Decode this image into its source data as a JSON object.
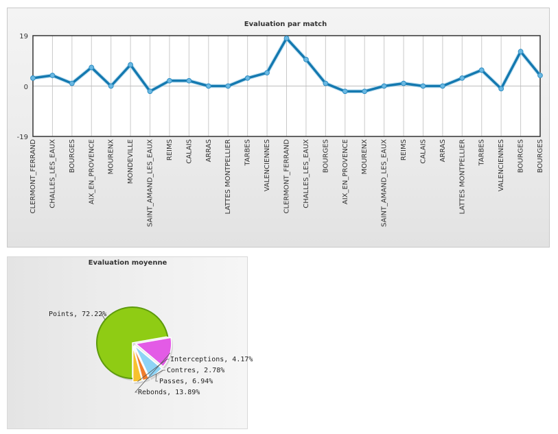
{
  "chart_data": [
    {
      "type": "line",
      "title": "Evaluation par match",
      "ylim": [
        -19,
        19
      ],
      "y_ticks": [
        "19",
        "0",
        "-19"
      ],
      "categories": [
        "CLERMONT_FERRAND",
        "CHALLES_LES_EAUX",
        "BOURGES",
        "AIX_EN_PROVENCE",
        "MOURENX",
        "MONDEVILLE",
        "SAINT_AMAND_LES_EAUX",
        "REIMS",
        "CALAIS",
        "ARRAS",
        "LATTES MONTPELLIER",
        "TARBES",
        "VALENCIENNES",
        "CLERMONT_FERRAND",
        "CHALLES_LES_EAUX",
        "BOURGES",
        "AIX_EN_PROVENCE",
        "MOURENX",
        "SAINT_AMAND_LES_EAUX",
        "REIMS",
        "CALAIS",
        "ARRAS",
        "LATTES MONTPELLIER",
        "TARBES",
        "VALENCIENNES",
        "BOURGES",
        "BOURGES"
      ],
      "values": [
        3,
        4,
        1,
        7,
        0,
        8,
        -2,
        2,
        2,
        0,
        0,
        3,
        5,
        18,
        10,
        1,
        -2,
        -2,
        0,
        1,
        0,
        0,
        3,
        6,
        -1,
        13,
        4
      ],
      "color": "#1479b0",
      "grid": true
    },
    {
      "type": "pie",
      "title": "Evaluation moyenne",
      "slices": [
        {
          "label": "Points",
          "value": 72.22,
          "text": "Points, 72.22%",
          "color": "#8fcc14"
        },
        {
          "label": "Rebonds",
          "value": 13.89,
          "text": "Rebonds, 13.89%",
          "color": "#e35be6"
        },
        {
          "label": "Passes",
          "value": 6.94,
          "text": "Passes, 6.94%",
          "color": "#8ed3f5"
        },
        {
          "label": "Contres",
          "value": 2.78,
          "text": "Contres, 2.78%",
          "color": "#f07c2c"
        },
        {
          "label": "Interceptions",
          "value": 4.17,
          "text": "Interceptions, 4.17%",
          "color": "#f7c12e"
        }
      ]
    }
  ]
}
